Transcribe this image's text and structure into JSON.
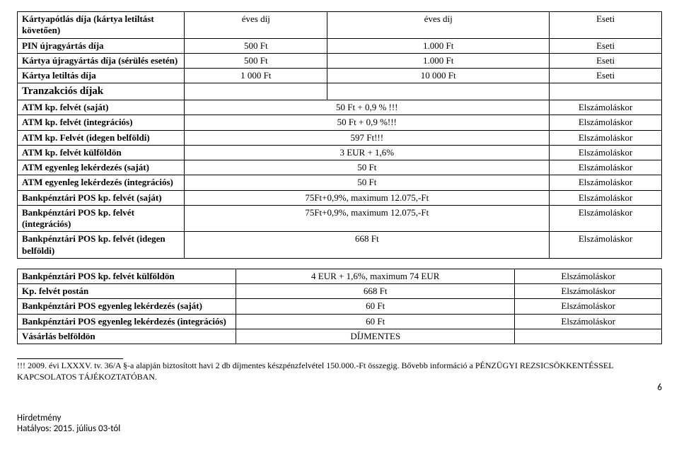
{
  "table1": {
    "rows": [
      {
        "label": "Kártyapótlás díja (kártya letiltást követően)",
        "c1": "éves díj",
        "c2": "éves díj",
        "c3": "Eseti"
      },
      {
        "label": "PIN újragyártás díja",
        "c1": "500 Ft",
        "c2": "1.000 Ft",
        "c3": "Eseti"
      },
      {
        "label": "Kártya újragyártás díja (sérülés esetén)",
        "c1": "500 Ft",
        "c2": "1.000 Ft",
        "c3": "Eseti"
      },
      {
        "label": "Kártya letiltás díja",
        "c1": "1 000 Ft",
        "c2": "10 000 Ft",
        "c3": "Eseti"
      }
    ],
    "section_label": "Tranzakciós díjak",
    "rows2": [
      {
        "label": "ATM kp. felvét (saját)",
        "c1": "",
        "c2": "50 Ft + 0,9 % !!!",
        "c3": "Elszámoláskor"
      },
      {
        "label": "ATM kp. felvét (integrációs)",
        "c1": "",
        "c2": "50 Ft  + 0,9 %!!!",
        "c3": "Elszámoláskor"
      },
      {
        "label": "ATM kp. Felvét (idegen belföldi)",
        "c1": "",
        "c2": "597 Ft!!!",
        "c3": "Elszámoláskor"
      },
      {
        "label": "ATM kp. felvét külföldön",
        "c1": "",
        "c2": "3 EUR + 1,6%",
        "c3": "Elszámoláskor"
      },
      {
        "label": "ATM egyenleg lekérdezés (saját)",
        "c1": "",
        "c2": "50 Ft",
        "c3": "Elszámoláskor"
      },
      {
        "label": "ATM egyenleg lekérdezés (integrációs)",
        "c1": "",
        "c2": "50 Ft",
        "c3": "Elszámoláskor"
      },
      {
        "label": "Bankpénztári POS kp. felvét (saját)",
        "c1": "",
        "c2": "75Ft+0,9%, maximum 12.075,-Ft",
        "c3": "Elszámoláskor"
      },
      {
        "label": "Bankpénztári POS kp. felvét (integrációs)",
        "c1": "",
        "c2": "75Ft+0,9%, maximum 12.075,-Ft",
        "c3": "Elszámoláskor"
      },
      {
        "label": "Bankpénztári POS kp. felvét (idegen belföldi)",
        "c1": "",
        "c2": "668 Ft",
        "c3": "Elszámoláskor"
      }
    ]
  },
  "table2": {
    "rows": [
      {
        "label": "Bankpénztári POS kp. felvét külföldön",
        "c1": "",
        "c2": "4 EUR + 1,6%, maximum 74 EUR",
        "c3": "Elszámoláskor"
      },
      {
        "label": "Kp. felvét postán",
        "c1": "",
        "c2": "668 Ft",
        "c3": "Elszámoláskor"
      },
      {
        "label": "Bankpénztári POS egyenleg lekérdezés (saját)",
        "c1": "",
        "c2": "60 Ft",
        "c3": "Elszámoláskor"
      },
      {
        "label": "Bankpénztári POS egyenleg lekérdezés (integrációs)",
        "c1": "",
        "c2": "60 Ft",
        "c3": "Elszámoláskor"
      },
      {
        "label": "Vásárlás belföldön",
        "c1": "",
        "c2": "DÍJMENTES",
        "c3": ""
      }
    ]
  },
  "footnote": "!!! 2009. évi LXXXV. tv. 36/A §-a alapján biztosított havi 2 db díjmentes készpénzfelvétel 150.000.-Ft összegig. Bővebb információ a PÉNZÜGYI REZSICSÖKKENTÉSSEL KAPCSOLATOS TÁJÉKOZTATÓBAN.",
  "footer_line1": "Hirdetmény",
  "footer_line2": "Hatályos: 2015. július 03-tól",
  "page_number": "6"
}
